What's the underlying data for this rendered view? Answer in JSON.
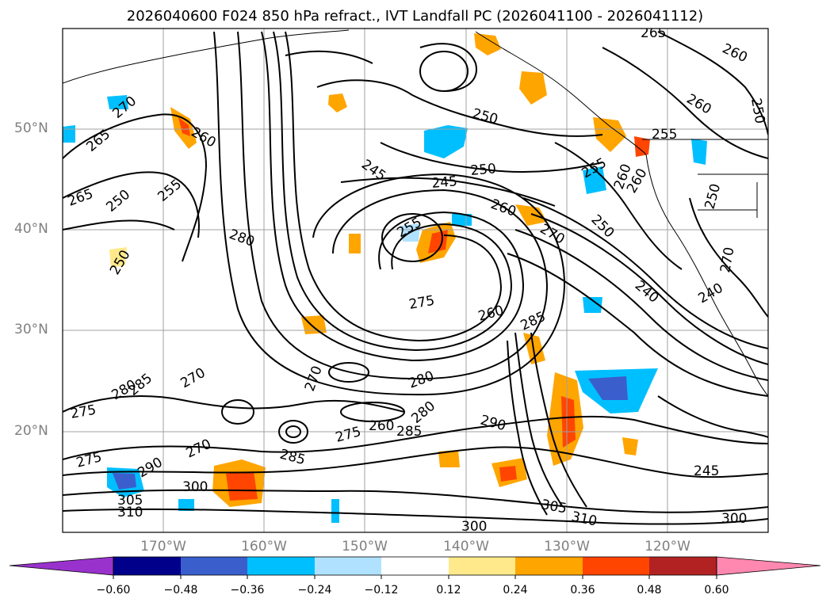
{
  "title": "2026040600 F024 850 hPa refract., IVT Landfall PC (2026041100 - 2026041112)",
  "map": {
    "projection": "plate-carree",
    "lon_range": [
      -180,
      -110
    ],
    "lat_range": [
      10,
      60
    ],
    "lat_labels": [
      "50°N",
      "40°N",
      "30°N",
      "20°N"
    ],
    "lon_labels": [
      "170°W",
      "160°W",
      "150°W",
      "140°W",
      "130°W",
      "120°W"
    ],
    "grid": true,
    "coastlines": true,
    "contour_color": "#000000",
    "contour_labels": [
      "265",
      "260",
      "270",
      "265",
      "260",
      "250",
      "245",
      "250",
      "255",
      "260",
      "250",
      "265",
      "250",
      "255",
      "245",
      "255",
      "260",
      "260",
      "250",
      "260",
      "250",
      "255",
      "270",
      "280",
      "250",
      "270",
      "240",
      "240",
      "275",
      "260",
      "285",
      "280",
      "270",
      "275",
      "280",
      "285",
      "290",
      "260",
      "285",
      "280",
      "270",
      "275",
      "270",
      "285",
      "290",
      "300",
      "305",
      "310",
      "305",
      "310",
      "300",
      "245",
      "300",
      "275"
    ]
  },
  "colorbar": {
    "tick_labels": [
      "−0.60",
      "−0.48",
      "−0.36",
      "−0.24",
      "−0.12",
      "0.12",
      "0.24",
      "0.36",
      "0.48",
      "0.60"
    ],
    "colors": [
      "#9932CC",
      "#00008B",
      "#3A5FCD",
      "#00BFFF",
      "#B0E2FF",
      "#FFFFFF",
      "#FFE98A",
      "#FFA500",
      "#FF4500",
      "#B22222",
      "#FF88B0"
    ],
    "extend": "both"
  }
}
